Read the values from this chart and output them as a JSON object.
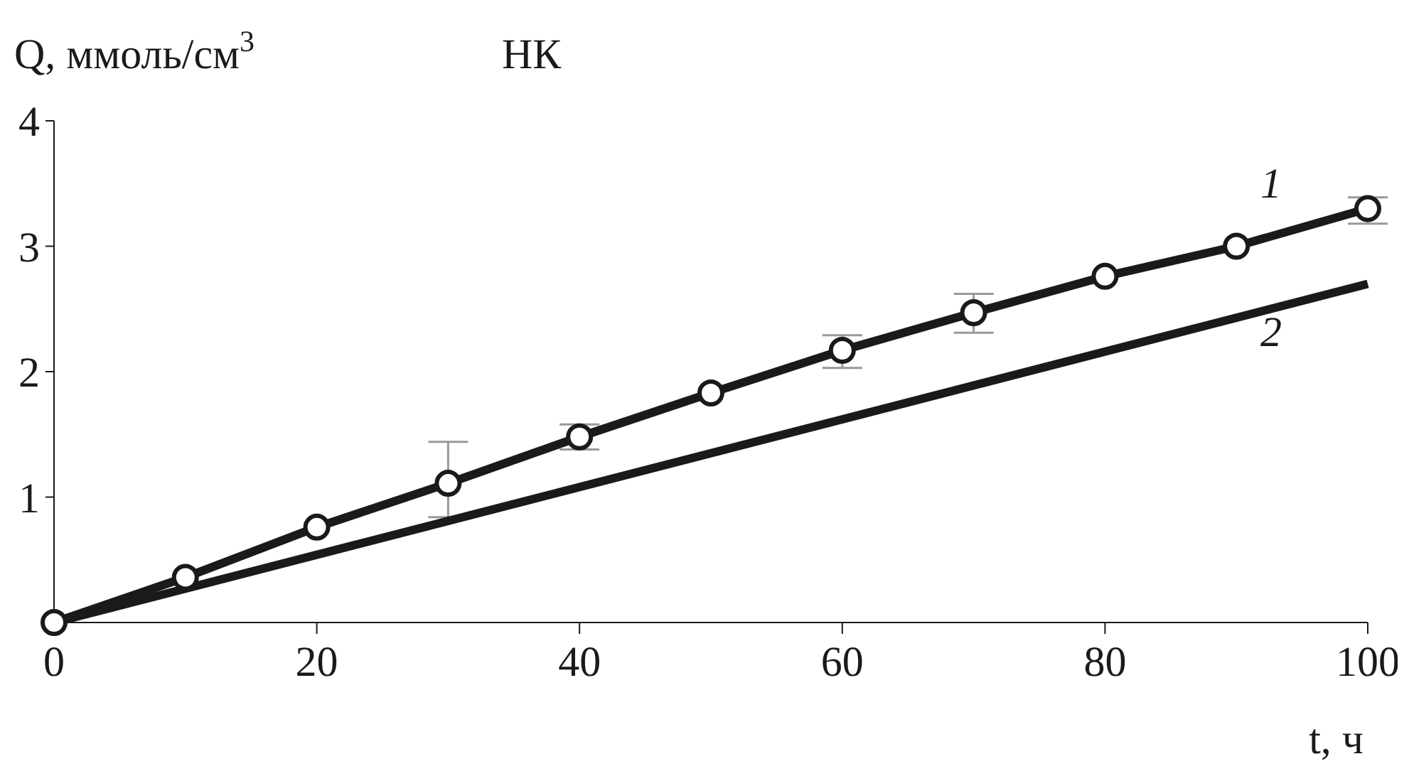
{
  "chart_data": {
    "type": "line",
    "title": "НК",
    "xlabel": "t, ч",
    "ylabel": "Q, ммоль/см$^{3}$",
    "xlim": [
      0,
      100
    ],
    "xticks": [
      0,
      20,
      40,
      60,
      80,
      100
    ],
    "ylim": [
      0,
      4
    ],
    "yticks": [
      {
        "value": 0,
        "label": null
      },
      1,
      2,
      3,
      4
    ],
    "grid": false,
    "legend": false,
    "line_style": "solid",
    "series": [
      {
        "name": "1",
        "color": "#1a1a1a",
        "marker": "circle",
        "x": [
          0,
          10,
          20,
          30,
          40,
          50,
          60,
          70,
          80,
          90,
          100
        ],
        "values": [
          0,
          0.36,
          0.76,
          1.11,
          1.48,
          1.83,
          2.17,
          2.47,
          2.76,
          3.0,
          3.3
        ],
        "errors": [
          null,
          null,
          null,
          [
            0.84,
            1.44
          ],
          [
            1.38,
            1.58
          ],
          null,
          [
            2.03,
            2.29
          ],
          [
            2.31,
            2.62
          ],
          null,
          null,
          [
            3.18,
            3.39
          ]
        ]
      },
      {
        "name": "2",
        "color": "#1a1a1a",
        "marker": "none",
        "x": [
          0,
          100
        ],
        "values": [
          0,
          2.7
        ]
      }
    ]
  }
}
